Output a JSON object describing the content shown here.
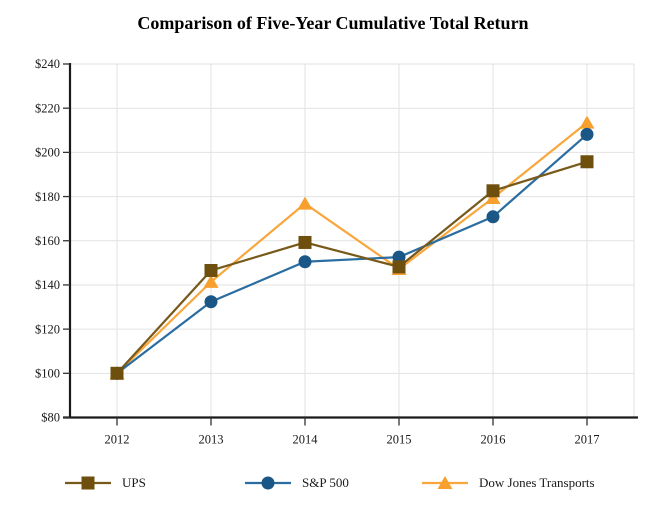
{
  "page": {
    "background": "#FFFFFF"
  },
  "chart_data": {
    "type": "line",
    "title": "Comparison of Five-Year Cumulative Total Return",
    "categories": [
      "2012",
      "2013",
      "2014",
      "2015",
      "2016",
      "2017"
    ],
    "series": [
      {
        "name": "UPS",
        "marker": "square",
        "line_color": "#77591A",
        "marker_color": "#6E4F0D",
        "values": [
          100.0,
          146.54,
          159.23,
          148.18,
          182.61,
          195.75
        ]
      },
      {
        "name": "S&P 500",
        "marker": "circle",
        "line_color": "#2B6DA0",
        "marker_color": "#1B5786",
        "values": [
          100.0,
          132.39,
          150.51,
          152.59,
          170.84,
          208.14
        ]
      },
      {
        "name": "Dow Jones Transports",
        "marker": "triangle",
        "line_color": "#F9A73C",
        "marker_color": "#F7A02E",
        "values": [
          100.0,
          141.38,
          176.83,
          147.19,
          179.37,
          213.49
        ]
      }
    ],
    "ylim": [
      80,
      240
    ],
    "y_tick_step": 20,
    "y_tick_labels": [
      "$80",
      "$100",
      "$120",
      "$140",
      "$160",
      "$180",
      "$200",
      "$220",
      "$240"
    ],
    "currency_prefix": "$",
    "grid": true,
    "gridline_color": "#E2E2E2",
    "axis_color": "#1A1A1A",
    "tick_color": "#333333",
    "legend_position": "bottom",
    "draw_order": [
      "Dow Jones Transports",
      "S&P 500",
      "UPS"
    ]
  }
}
